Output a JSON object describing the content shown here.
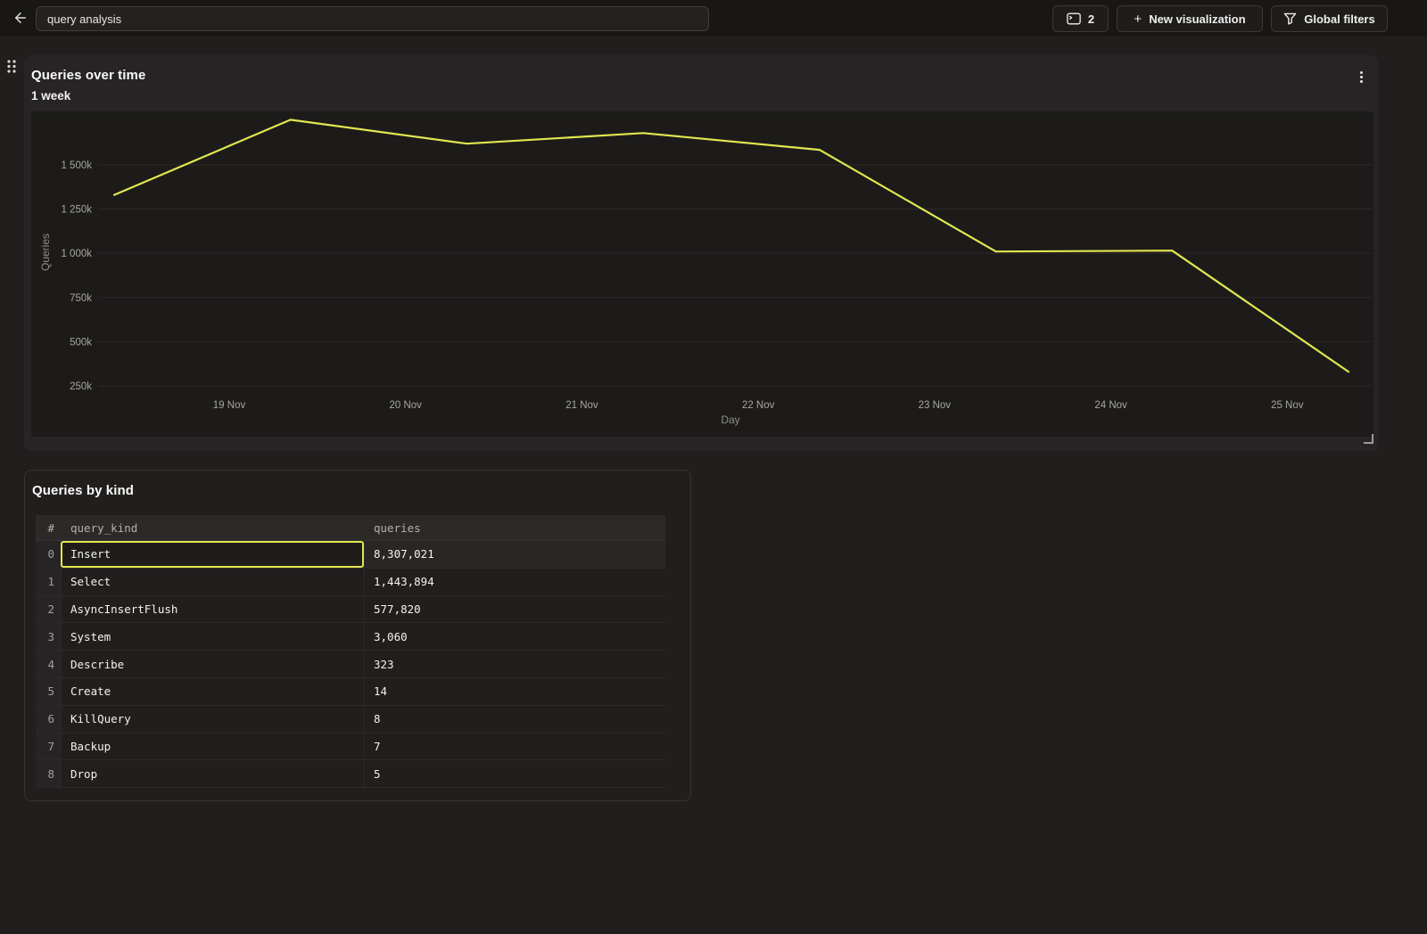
{
  "topbar": {
    "back_button": {
      "icon": "arrow-left-icon"
    },
    "title_input": {
      "value": "query analysis"
    },
    "views_button": {
      "icon": "console-icon",
      "count": "2"
    },
    "new_visualization_button": {
      "plus": "+",
      "label": "New visualization"
    },
    "global_filters_button": {
      "icon": "funnel-icon",
      "label": "Global filters"
    }
  },
  "chart_card": {
    "title": "Queries over time",
    "subtitle": "1 week",
    "menu_icon": "kebab-menu-icon"
  },
  "table_card": {
    "title": "Queries by kind",
    "table": {
      "columns": [
        "#",
        "query_kind",
        "queries"
      ],
      "rows": [
        {
          "index": "0",
          "query_kind": "Insert",
          "queries": "8,307,021",
          "selected": true
        },
        {
          "index": "1",
          "query_kind": "Select",
          "queries": "1,443,894",
          "selected": false
        },
        {
          "index": "2",
          "query_kind": "AsyncInsertFlush",
          "queries": "577,820",
          "selected": false
        },
        {
          "index": "3",
          "query_kind": "System",
          "queries": "3,060",
          "selected": false
        },
        {
          "index": "4",
          "query_kind": "Describe",
          "queries": "323",
          "selected": false
        },
        {
          "index": "5",
          "query_kind": "Create",
          "queries": "14",
          "selected": false
        },
        {
          "index": "6",
          "query_kind": "KillQuery",
          "queries": "8",
          "selected": false
        },
        {
          "index": "7",
          "query_kind": "Backup",
          "queries": "7",
          "selected": false
        },
        {
          "index": "8",
          "query_kind": "Drop",
          "queries": "5",
          "selected": false
        }
      ]
    }
  },
  "chart_data": {
    "type": "line",
    "title": "Queries over time",
    "subtitle": "1 week",
    "xlabel": "Day",
    "ylabel": "Queries",
    "x_tick_labels": [
      "19 Nov",
      "20 Nov",
      "21 Nov",
      "22 Nov",
      "23 Nov",
      "24 Nov",
      "25 Nov"
    ],
    "y_ticks": [
      {
        "label": "1 500k",
        "value": 1500000
      },
      {
        "label": "1 250k",
        "value": 1250000
      },
      {
        "label": "1 000k",
        "value": 1000000
      },
      {
        "label": "750k",
        "value": 750000
      },
      {
        "label": "500k",
        "value": 500000
      },
      {
        "label": "250k",
        "value": 250000
      }
    ],
    "series": [
      {
        "name": "Queries",
        "color": "#E2E64F",
        "x": [
          "18 Nov",
          "19 Nov",
          "20 Nov",
          "21 Nov",
          "22 Nov",
          "23 Nov",
          "24 Nov",
          "25 Nov"
        ],
        "values": [
          1330000,
          1755000,
          1620000,
          1680000,
          1585000,
          1010000,
          1015000,
          330000
        ]
      }
    ],
    "ylim": [
      0,
      1800000
    ],
    "grid": true,
    "legend": false
  }
}
